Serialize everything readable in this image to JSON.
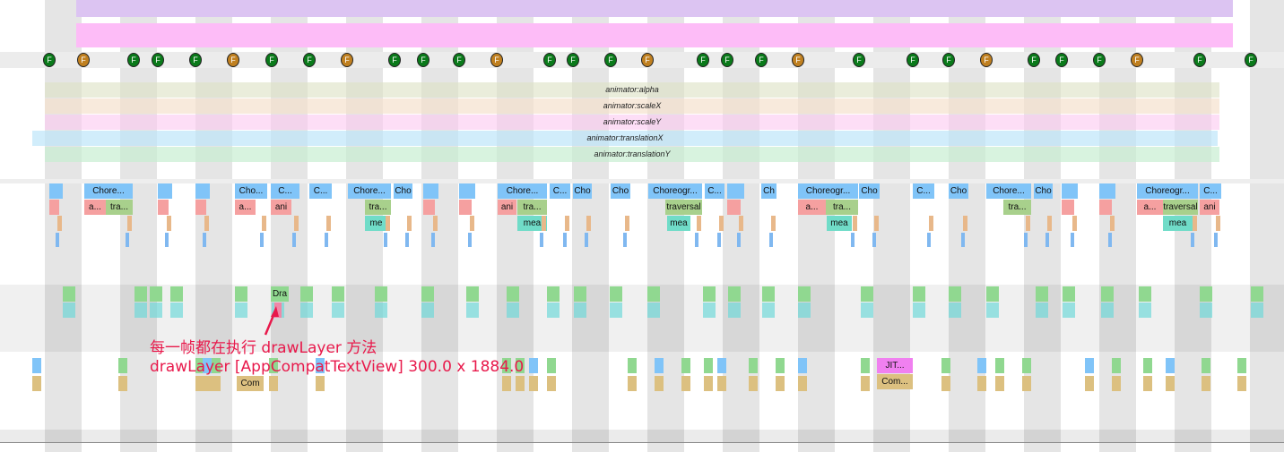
{
  "colors": {
    "accent_annotation": "#e8194b",
    "frame_good": "#0a7a1a",
    "frame_janky": "#c08020",
    "choreographer": "#80c4f8",
    "animation": "#f5a0a0",
    "traversal": "#a8d08c",
    "measure": "#70dcc8"
  },
  "frame_markers": {
    "label": "F",
    "states": [
      "good",
      "janky",
      "good",
      "good",
      "good",
      "janky",
      "good",
      "good",
      "janky",
      "good",
      "good",
      "good",
      "janky",
      "good",
      "good",
      "good",
      "janky",
      "good",
      "good",
      "good",
      "janky",
      "good",
      "good",
      "good",
      "janky",
      "good",
      "good",
      "good",
      "janky",
      "good",
      "good"
    ]
  },
  "animators": [
    "animator:alpha",
    "animator:scaleX",
    "animator:scaleY",
    "animator:translationX",
    "animator:translationY"
  ],
  "main_thread": {
    "row1": [
      "Chore...",
      "Cho...",
      "C...",
      "C...",
      "Chore...",
      "Cho",
      "Chore...",
      "C...",
      "Cho",
      "Cho",
      "Choreogr...",
      "C...",
      "Ch",
      "Choreogr...",
      "Cho",
      "C...",
      "Cho",
      "Chore...",
      "Cho",
      "Choreogr...",
      "C..."
    ],
    "row2": [
      "a...",
      "tra...",
      "a...",
      "ani",
      "tra...",
      "ani",
      "tra...",
      "traversal",
      "a...",
      "tra...",
      "tra...",
      "a...",
      "traversal",
      "ani"
    ],
    "row3": [
      "me",
      "mea",
      "mea",
      "mea",
      "mea"
    ]
  },
  "render_thread": {
    "labels": [
      "Dra"
    ]
  },
  "worker_thread": {
    "labels": [
      "Com",
      "JIT...",
      "Com..."
    ]
  },
  "annotation": {
    "line1": "每一帧都在执行 drawLayer 方法",
    "line2": "drawLayer [AppCompatTextView] 300.0 x 1884.0"
  }
}
